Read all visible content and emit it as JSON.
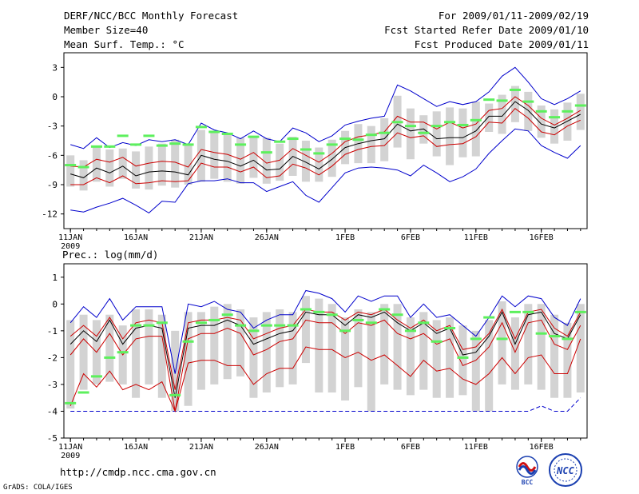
{
  "header": {
    "left1": "DERF/NCC/BCC Monthly Forecast",
    "left2": "Member Size=40",
    "left3": "Mean Surf. Temp.: °C",
    "right1": "For 2009/01/11-2009/02/19",
    "right2": "Fcst Started Refer Date 2009/01/10",
    "right3": "Fcst Produced Date 2009/01/11"
  },
  "footer": {
    "url": "http://cmdp.ncc.cma.gov.cn",
    "grads": "GrADS: COLA/IGES",
    "logo_bcc": "BCC",
    "logo_ncc": "NCC"
  },
  "colors": {
    "max": "#0000cc",
    "min": "#0000cc",
    "upper": "#cc0000",
    "lower": "#cc0000",
    "mean": "#000000",
    "bar": "#d3d3d3",
    "marker": "#5df05d"
  },
  "chart_data": [
    {
      "type": "line",
      "title": "Mean Surf. Temp.: °C",
      "ylim": [
        -13.5,
        4.5
      ],
      "yticks": [
        3,
        0,
        -3,
        -6,
        -9,
        -12
      ],
      "xlim": [
        0.5,
        40.5
      ],
      "xticks": [
        {
          "day": 1,
          "label": "11JAN",
          "sub": "2009"
        },
        {
          "day": 6,
          "label": "16JAN"
        },
        {
          "day": 11,
          "label": "21JAN"
        },
        {
          "day": 16,
          "label": "26JAN"
        },
        {
          "day": 22,
          "label": "1FEB"
        },
        {
          "day": 27,
          "label": "6FEB"
        },
        {
          "day": 32,
          "label": "11FEB"
        },
        {
          "day": 37,
          "label": "16FEB"
        }
      ],
      "days": [
        1,
        2,
        3,
        4,
        5,
        6,
        7,
        8,
        9,
        10,
        11,
        12,
        13,
        14,
        15,
        16,
        17,
        18,
        19,
        20,
        21,
        22,
        23,
        24,
        25,
        26,
        27,
        28,
        29,
        30,
        31,
        32,
        33,
        34,
        35,
        36,
        37,
        38,
        39,
        40
      ],
      "series": [
        {
          "name": "max",
          "values": [
            -4.9,
            -5.3,
            -4.2,
            -5.2,
            -4.7,
            -5.0,
            -4.4,
            -4.6,
            -4.4,
            -4.9,
            -2.7,
            -3.4,
            -3.7,
            -4.3,
            -3.5,
            -4.3,
            -4.6,
            -3.2,
            -3.7,
            -4.6,
            -4.0,
            -2.9,
            -2.5,
            -2.2,
            -2.0,
            1.2,
            0.6,
            -0.2,
            -1.0,
            -0.5,
            -0.8,
            -0.5,
            0.5,
            2.1,
            3.0,
            1.5,
            -0.2,
            -0.8,
            -0.2,
            0.6
          ]
        },
        {
          "name": "upper",
          "values": [
            -7.1,
            -7.2,
            -6.4,
            -6.7,
            -6.2,
            -7.1,
            -6.8,
            -6.6,
            -6.7,
            -7.2,
            -5.4,
            -5.7,
            -5.9,
            -6.4,
            -5.7,
            -6.8,
            -6.5,
            -5.3,
            -6.0,
            -6.7,
            -5.8,
            -4.6,
            -4.1,
            -3.9,
            -3.6,
            -2.0,
            -2.6,
            -2.6,
            -3.3,
            -2.6,
            -3.2,
            -2.8,
            -1.4,
            -1.2,
            0.0,
            -0.9,
            -2.2,
            -2.9,
            -2.2,
            -1.4
          ]
        },
        {
          "name": "mean",
          "values": [
            -7.9,
            -8.3,
            -7.3,
            -7.8,
            -7.1,
            -8.1,
            -7.7,
            -7.6,
            -7.7,
            -8.0,
            -6.0,
            -6.4,
            -6.6,
            -7.1,
            -6.5,
            -7.5,
            -7.4,
            -6.1,
            -6.7,
            -7.4,
            -6.4,
            -5.2,
            -4.8,
            -4.5,
            -4.3,
            -2.8,
            -3.5,
            -3.3,
            -4.3,
            -4.2,
            -4.2,
            -3.5,
            -2.0,
            -2.0,
            -0.5,
            -1.4,
            -2.8,
            -3.2,
            -2.5,
            -1.8
          ]
        },
        {
          "name": "lower",
          "values": [
            -9.0,
            -9.0,
            -8.3,
            -8.8,
            -8.1,
            -8.9,
            -8.8,
            -8.6,
            -8.7,
            -8.6,
            -6.8,
            -7.2,
            -7.2,
            -7.7,
            -7.2,
            -8.3,
            -8.1,
            -6.9,
            -7.3,
            -8.0,
            -7.1,
            -5.9,
            -5.4,
            -5.1,
            -5.0,
            -3.7,
            -4.2,
            -4.0,
            -5.1,
            -4.9,
            -4.8,
            -4.1,
            -2.6,
            -2.7,
            -1.2,
            -2.2,
            -3.6,
            -3.9,
            -3.0,
            -2.4
          ]
        },
        {
          "name": "min",
          "values": [
            -11.6,
            -11.8,
            -11.3,
            -10.9,
            -10.4,
            -11.1,
            -11.9,
            -10.7,
            -10.8,
            -8.9,
            -8.6,
            -8.6,
            -8.4,
            -8.8,
            -8.8,
            -9.7,
            -9.2,
            -8.7,
            -10.1,
            -10.8,
            -9.3,
            -7.8,
            -7.3,
            -7.2,
            -7.3,
            -7.5,
            -8.1,
            -7.0,
            -7.8,
            -8.7,
            -8.2,
            -7.4,
            -5.8,
            -4.5,
            -3.3,
            -3.5,
            -5.0,
            -5.7,
            -6.3,
            -5.0
          ]
        },
        {
          "name": "obs_marker",
          "values": [
            -7.0,
            -7.2,
            -5.1,
            -5.1,
            -4.0,
            -4.9,
            -4.0,
            -5.0,
            -4.8,
            -4.9,
            -3.1,
            -3.6,
            -3.8,
            -4.9,
            -4.1,
            -5.7,
            -4.6,
            -4.3,
            -5.4,
            -5.8,
            -4.9,
            -4.3,
            -4.4,
            -3.9,
            -3.7,
            -2.6,
            -3.0,
            -3.7,
            -3.0,
            -2.6,
            -2.9,
            -2.4,
            -0.3,
            -0.4,
            0.7,
            -0.5,
            -1.5,
            -2.1,
            -1.5,
            -0.9
          ]
        },
        {
          "name": "spread_top",
          "values": [
            -6.0,
            -6.5,
            -5.2,
            -5.4,
            -5.3,
            -5.6,
            -5.1,
            -4.8,
            -4.4,
            -4.9,
            -3.4,
            -3.6,
            -3.7,
            -4.2,
            -4.1,
            -4.2,
            -4.8,
            -4.1,
            -4.5,
            -5.2,
            -4.4,
            -3.5,
            -2.8,
            -3.0,
            -2.2,
            0.1,
            -1.2,
            -1.9,
            -1.5,
            -1.1,
            -1.2,
            -0.5,
            -0.7,
            0.2,
            1.1,
            0.5,
            -0.9,
            -1.3,
            -0.6,
            0.3
          ]
        },
        {
          "name": "spread_bottom",
          "values": [
            -9.2,
            -9.6,
            -8.7,
            -9.2,
            -8.4,
            -9.4,
            -9.5,
            -9.1,
            -9.3,
            -9.0,
            -8.7,
            -8.4,
            -8.7,
            -8.9,
            -8.3,
            -8.9,
            -8.6,
            -8.1,
            -8.7,
            -8.7,
            -8.2,
            -6.9,
            -6.8,
            -6.8,
            -6.6,
            -5.2,
            -6.4,
            -4.8,
            -6.1,
            -7.0,
            -6.2,
            -6.1,
            -3.6,
            -3.8,
            -2.6,
            -3.5,
            -4.2,
            -4.8,
            -4.5,
            -3.4
          ]
        }
      ]
    },
    {
      "type": "line",
      "title": "Prec.: log(mm/d)",
      "ylim": [
        -5,
        1.5
      ],
      "yticks": [
        1,
        0,
        -1,
        -2,
        -3,
        -4,
        -5
      ],
      "xlim": [
        0.5,
        40.5
      ],
      "xticks": [
        {
          "day": 1,
          "label": "11JAN",
          "sub": "2009"
        },
        {
          "day": 6,
          "label": "16JAN"
        },
        {
          "day": 11,
          "label": "21JAN"
        },
        {
          "day": 16,
          "label": "26JAN"
        },
        {
          "day": 22,
          "label": "1FEB"
        },
        {
          "day": 27,
          "label": "6FEB"
        },
        {
          "day": 32,
          "label": "11FEB"
        },
        {
          "day": 37,
          "label": "16FEB"
        }
      ],
      "days": [
        1,
        2,
        3,
        4,
        5,
        6,
        7,
        8,
        9,
        10,
        11,
        12,
        13,
        14,
        15,
        16,
        17,
        18,
        19,
        20,
        21,
        22,
        23,
        24,
        25,
        26,
        27,
        28,
        29,
        30,
        31,
        32,
        33,
        34,
        35,
        36,
        37,
        38,
        39,
        40
      ],
      "series": [
        {
          "name": "max",
          "values": [
            -0.7,
            -0.1,
            -0.5,
            0.2,
            -0.6,
            -0.1,
            -0.1,
            -0.1,
            -2.6,
            0.0,
            -0.1,
            0.1,
            -0.2,
            -0.3,
            -0.9,
            -0.6,
            -0.4,
            -0.4,
            0.5,
            0.4,
            0.2,
            -0.3,
            0.3,
            0.1,
            0.3,
            0.3,
            -0.5,
            0.0,
            -0.5,
            -0.4,
            -0.8,
            -1.2,
            -0.5,
            0.3,
            -0.1,
            0.3,
            0.2,
            -0.5,
            -0.8,
            0.2
          ]
        },
        {
          "name": "upper",
          "values": [
            -1.2,
            -0.8,
            -1.2,
            -0.5,
            -1.3,
            -0.7,
            -0.6,
            -0.7,
            -3.2,
            -0.7,
            -0.6,
            -0.6,
            -0.5,
            -0.6,
            -1.3,
            -1.1,
            -0.9,
            -0.8,
            -0.2,
            -0.3,
            -0.3,
            -0.6,
            -0.3,
            -0.4,
            -0.2,
            -0.6,
            -0.9,
            -0.6,
            -1.0,
            -0.8,
            -1.7,
            -1.6,
            -1.1,
            -0.2,
            -1.3,
            -0.3,
            -0.2,
            -0.9,
            -1.2,
            -0.3
          ]
        },
        {
          "name": "mean",
          "values": [
            -1.5,
            -1.0,
            -1.4,
            -0.6,
            -1.5,
            -0.9,
            -0.8,
            -0.9,
            -3.5,
            -0.9,
            -0.8,
            -0.8,
            -0.6,
            -0.8,
            -1.5,
            -1.3,
            -1.1,
            -1.0,
            -0.3,
            -0.4,
            -0.4,
            -0.8,
            -0.4,
            -0.5,
            -0.3,
            -0.7,
            -1.0,
            -0.7,
            -1.1,
            -0.9,
            -1.9,
            -1.8,
            -1.2,
            -0.3,
            -1.5,
            -0.4,
            -0.3,
            -1.1,
            -1.3,
            -0.4
          ]
        },
        {
          "name": "lower",
          "values": [
            -1.9,
            -1.3,
            -1.8,
            -1.1,
            -1.9,
            -1.3,
            -1.2,
            -1.2,
            -4.0,
            -1.3,
            -1.1,
            -1.1,
            -0.9,
            -1.1,
            -1.9,
            -1.7,
            -1.4,
            -1.3,
            -0.6,
            -0.7,
            -0.7,
            -1.1,
            -0.7,
            -0.8,
            -0.6,
            -1.1,
            -1.3,
            -1.1,
            -1.5,
            -1.3,
            -2.3,
            -2.1,
            -1.6,
            -0.7,
            -1.8,
            -0.7,
            -0.6,
            -1.5,
            -1.7,
            -0.8
          ]
        },
        {
          "name": "min",
          "values": [
            -4.0,
            -4.0,
            -4.0,
            -4.0,
            -4.0,
            -4.0,
            -4.0,
            -4.0,
            -4.0,
            -4.0,
            -4.0,
            -4.0,
            -4.0,
            -4.0,
            -4.0,
            -4.0,
            -4.0,
            -4.0,
            -4.0,
            -4.0,
            -4.0,
            -4.0,
            -4.0,
            -4.0,
            -4.0,
            -4.0,
            -4.0,
            -4.0,
            -4.0,
            -4.0,
            -4.0,
            -4.0,
            -4.0,
            -4.0,
            -4.0,
            -4.0,
            -3.8,
            -4.0,
            -4.0,
            -3.5
          ]
        },
        {
          "name": "low_red",
          "values": [
            -3.8,
            -2.6,
            -3.1,
            -2.5,
            -3.2,
            -3.0,
            -3.2,
            -2.9,
            -4.0,
            -2.2,
            -2.1,
            -2.1,
            -2.3,
            -2.3,
            -3.0,
            -2.6,
            -2.4,
            -2.4,
            -1.6,
            -1.7,
            -1.7,
            -2.0,
            -1.8,
            -2.1,
            -1.9,
            -2.3,
            -2.7,
            -2.1,
            -2.5,
            -2.4,
            -2.8,
            -3.0,
            -2.6,
            -2.0,
            -2.6,
            -2.0,
            -1.9,
            -2.6,
            -2.6,
            -1.3
          ]
        },
        {
          "name": "obs_marker",
          "values": [
            -3.7,
            -3.3,
            -2.7,
            -2.0,
            -1.8,
            -0.8,
            -0.8,
            -0.7,
            -3.4,
            -1.4,
            -0.7,
            -0.6,
            -0.4,
            -0.8,
            -1.0,
            -0.8,
            -0.8,
            -0.8,
            -0.2,
            -0.3,
            -0.4,
            -1.0,
            -0.6,
            -0.7,
            -0.2,
            -0.4,
            -1.0,
            -0.7,
            -1.4,
            -0.9,
            -2.0,
            -1.3,
            -0.5,
            -1.3,
            -0.3,
            -0.3,
            -1.1,
            -1.2,
            -1.3,
            -0.3
          ]
        },
        {
          "name": "spread_top",
          "values": [
            -0.6,
            -0.4,
            -0.6,
            -0.4,
            -0.8,
            -0.2,
            -0.2,
            -0.4,
            -1.0,
            -0.3,
            -0.3,
            -0.1,
            0.0,
            -0.2,
            -0.5,
            -0.3,
            -0.2,
            -0.3,
            0.3,
            0.2,
            0.0,
            -0.5,
            -0.2,
            -0.3,
            0.0,
            0.0,
            -0.5,
            -0.3,
            -0.6,
            -0.5,
            -0.8,
            -1.0,
            -0.6,
            0.1,
            -0.5,
            0.0,
            0.0,
            -0.4,
            -0.7,
            0.0
          ]
        },
        {
          "name": "spread_bottom",
          "values": [
            -3.9,
            -3.2,
            -3.0,
            -2.9,
            -3.0,
            -3.5,
            -3.0,
            -3.5,
            -4.0,
            -3.8,
            -3.2,
            -3.0,
            -2.8,
            -2.7,
            -3.5,
            -3.3,
            -3.1,
            -3.0,
            -2.2,
            -3.3,
            -3.3,
            -3.6,
            -3.1,
            -4.0,
            -3.0,
            -3.2,
            -3.4,
            -3.2,
            -3.5,
            -3.5,
            -3.4,
            -4.0,
            -4.0,
            -3.0,
            -3.2,
            -3.0,
            -3.2,
            -3.5,
            -3.5,
            -3.3
          ]
        }
      ]
    }
  ]
}
